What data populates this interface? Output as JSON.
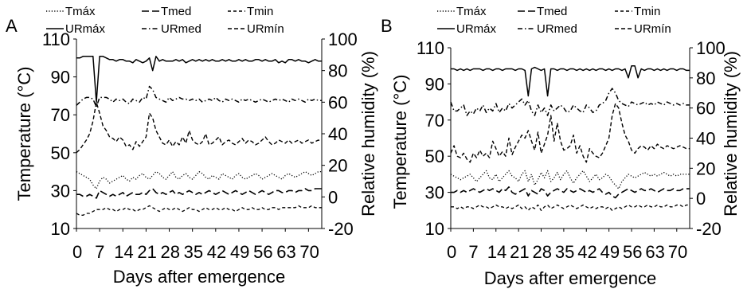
{
  "chart_data": [
    {
      "panel_label": "A",
      "type": "line",
      "xlabel": "Days after emergence",
      "ylabel_left": "Temperature (°C)",
      "ylabel_right": "Relative humidity (%)",
      "x_ticks": [
        "0",
        "7",
        "14",
        "21",
        "28",
        "35",
        "42",
        "49",
        "56",
        "63",
        "70"
      ],
      "y_left_ticks": [
        "10",
        "30",
        "50",
        "70",
        "90",
        "110"
      ],
      "y_right_ticks": [
        "-20",
        "0",
        "20",
        "40",
        "60",
        "80",
        "100"
      ],
      "xlim": [
        0,
        74
      ],
      "ylim_left": [
        10,
        110
      ],
      "ylim_right": [
        -20,
        100
      ],
      "legend": [
        "Tmáx",
        "Tmed",
        "Tmin",
        "URmáx",
        "URmed",
        "URmín"
      ],
      "series": [
        {
          "name": "URmáx",
          "axis": "right",
          "values": [
            null,
            null,
            null,
            null,
            null,
            null,
            null,
            null,
            null,
            null,
            null,
            null,
            null,
            null,
            null,
            null,
            null,
            null,
            null,
            null,
            null,
            null,
            null,
            null,
            null,
            null,
            null,
            null,
            null,
            null,
            null,
            null,
            null,
            null,
            null,
            null,
            null,
            null,
            null,
            null,
            null,
            null,
            null,
            null,
            null,
            null,
            null,
            null,
            null,
            null,
            null,
            null,
            null,
            null,
            null,
            null,
            null,
            null,
            null,
            null,
            null,
            null,
            null,
            null,
            null,
            null,
            null,
            null,
            null,
            null,
            null,
            null,
            null,
            null,
            null
          ]
        },
        {
          "name": "URmed",
          "axis": "right",
          "values": []
        },
        {
          "name": "URmín",
          "axis": "right",
          "values": []
        },
        {
          "name": "Tmáx",
          "axis": "left",
          "values": []
        },
        {
          "name": "Tmed",
          "axis": "left",
          "values": []
        },
        {
          "name": "Tmin",
          "axis": "left",
          "values": []
        }
      ]
    },
    {
      "panel_label": "B",
      "type": "line",
      "xlabel": "Days after emergence",
      "ylabel_left": "Temperature (°C)",
      "ylabel_right": "Relative humidity (%)",
      "x_ticks": [
        "0",
        "7",
        "14",
        "21",
        "28",
        "35",
        "42",
        "49",
        "56",
        "63",
        "70"
      ],
      "y_left_ticks": [
        "10",
        "30",
        "50",
        "70",
        "90",
        "110"
      ],
      "y_right_ticks": [
        "-20",
        "0",
        "20",
        "40",
        "60",
        "80",
        "100"
      ],
      "xlim": [
        0,
        74
      ],
      "ylim_left": [
        10,
        110
      ],
      "ylim_right": [
        -20,
        100
      ],
      "legend": [
        "Tmáx",
        "Tmed",
        "Tmin",
        "URmáx",
        "URmed",
        "URmín"
      ],
      "series": []
    }
  ]
}
